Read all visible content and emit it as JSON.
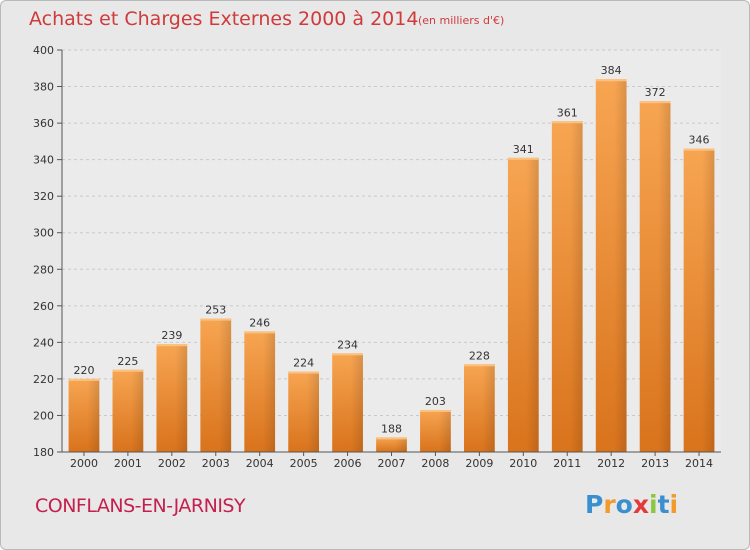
{
  "chart_data": {
    "type": "bar",
    "title": "Achats et Charges Externes 2000 à 2014",
    "subtitle": "(en milliers d'€)",
    "categories": [
      "2000",
      "2001",
      "2002",
      "2003",
      "2004",
      "2005",
      "2006",
      "2007",
      "2008",
      "2009",
      "2010",
      "2011",
      "2012",
      "2013",
      "2014"
    ],
    "values": [
      220,
      225,
      239,
      253,
      246,
      224,
      234,
      188,
      203,
      228,
      341,
      361,
      384,
      372,
      346
    ],
    "ylim": [
      180,
      400
    ],
    "yticks": [
      180,
      200,
      220,
      240,
      260,
      280,
      300,
      320,
      340,
      360,
      380,
      400
    ],
    "grid": true,
    "bar_color": "#f5a24e"
  },
  "place_name": "CONFLANS-EN-JARNISY",
  "logo": {
    "text": "Proxiti",
    "letters": [
      {
        "ch": "P",
        "color": "#3a8fd0"
      },
      {
        "ch": "r",
        "color": "#f29a2a"
      },
      {
        "ch": "o",
        "color": "#3a8fd0"
      },
      {
        "ch": "x",
        "color": "#e33b3b"
      },
      {
        "ch": "i",
        "color": "#8dc63f"
      },
      {
        "ch": "t",
        "color": "#3a8fd0"
      },
      {
        "ch": "i",
        "color": "#f29a2a"
      }
    ]
  }
}
